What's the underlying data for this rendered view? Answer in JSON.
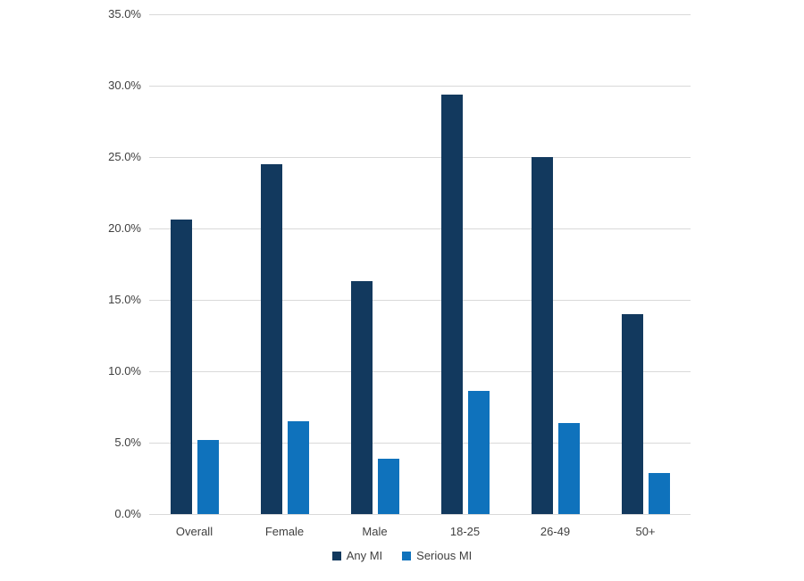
{
  "chart_data": {
    "type": "bar",
    "title": "",
    "categories": [
      "Overall",
      "Female",
      "Male",
      "18-25",
      "26-49",
      "50+"
    ],
    "series": [
      {
        "name": "Any MI",
        "color": "#12395E",
        "values": [
          20.6,
          24.5,
          16.3,
          29.4,
          25.0,
          14.0
        ]
      },
      {
        "name": "Serious MI",
        "color": "#0F72BC",
        "values": [
          5.2,
          6.5,
          3.9,
          8.6,
          6.4,
          2.9
        ]
      }
    ],
    "xlabel": "",
    "ylabel": "",
    "ylim": [
      0,
      35
    ],
    "ytick_step": 5,
    "ytick_labels": [
      "0.0%",
      "5.0%",
      "10.0%",
      "15.0%",
      "20.0%",
      "25.0%",
      "30.0%",
      "35.0%"
    ],
    "grid": true,
    "gridline_color": "#D9D9D9",
    "axis_line_color": "#D9D9D9",
    "text_color": "#404040",
    "background": "#FFFFFF",
    "legend_position": "bottom"
  }
}
